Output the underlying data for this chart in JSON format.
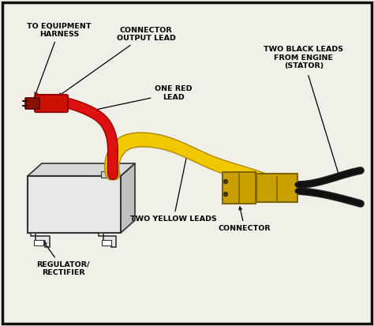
{
  "bg_color": "#f0efe8",
  "border_color": "#111111",
  "text_color": "#000000",
  "labels": {
    "to_equipment": "TO EQUIPMENT\nHARNESS",
    "connector_output": "CONNECTOR\nOUTPUT LEAD",
    "one_red_lead": "ONE RED\nLEAD",
    "two_black_leads": "TWO BLACK LEADS\nFROM ENGINE\n(STATOR)",
    "regulator": "REGULATOR/\nRECTIFIER",
    "two_yellow_leads": "TWO YELLOW LEADS",
    "connector": "CONNECTOR"
  },
  "colors": {
    "red_wire": "#dd1111",
    "red_wire_dark": "#990000",
    "yellow_wire": "#f0c800",
    "yellow_wire_dark": "#b08800",
    "black_wire": "#111111",
    "connector_body": "#c8a000",
    "connector_dark": "#806600",
    "box_front": "#e8e8e8",
    "box_top": "#d8d8d8",
    "box_right": "#c0c0c0",
    "box_stroke": "#333333",
    "plug_body": "#cc1100",
    "plug_tip": "#881100"
  },
  "figsize": [
    4.74,
    4.13
  ],
  "dpi": 100
}
